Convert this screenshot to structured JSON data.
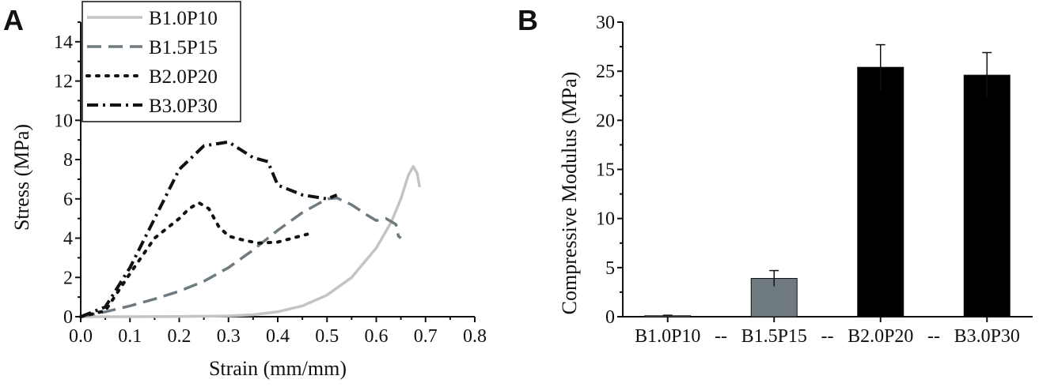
{
  "panels": {
    "a": {
      "letter": "A"
    },
    "b": {
      "letter": "B"
    }
  },
  "chart_data": [
    {
      "type": "line",
      "xlabel": "Strain (mm/mm)",
      "ylabel": "Stress (MPa)",
      "xlim": [
        0,
        0.8
      ],
      "ylim": [
        0,
        15
      ],
      "xticks": [
        "0.0",
        "0.1",
        "0.2",
        "0.3",
        "0.4",
        "0.5",
        "0.6",
        "0.7",
        "0.8"
      ],
      "yticks": [
        "0",
        "2",
        "4",
        "6",
        "8",
        "10",
        "12",
        "14"
      ],
      "grid": false,
      "legend_position": "top-left",
      "series": [
        {
          "name": "B1.0P10",
          "style": "solid",
          "color": "#c4c4c4",
          "points": [
            [
              0,
              0
            ],
            [
              0.1,
              0
            ],
            [
              0.2,
              0.01
            ],
            [
              0.3,
              0.04
            ],
            [
              0.35,
              0.1
            ],
            [
              0.4,
              0.25
            ],
            [
              0.45,
              0.55
            ],
            [
              0.5,
              1.1
            ],
            [
              0.55,
              2.0
            ],
            [
              0.6,
              3.5
            ],
            [
              0.63,
              4.8
            ],
            [
              0.65,
              6.0
            ],
            [
              0.665,
              7.2
            ],
            [
              0.675,
              7.65
            ],
            [
              0.683,
              7.3
            ],
            [
              0.688,
              6.6
            ]
          ]
        },
        {
          "name": "B1.5P15",
          "style": "dashed",
          "color": "#6e7a80",
          "points": [
            [
              0,
              0
            ],
            [
              0.05,
              0.25
            ],
            [
              0.1,
              0.55
            ],
            [
              0.15,
              0.9
            ],
            [
              0.2,
              1.3
            ],
            [
              0.25,
              1.8
            ],
            [
              0.3,
              2.5
            ],
            [
              0.35,
              3.4
            ],
            [
              0.4,
              4.4
            ],
            [
              0.45,
              5.3
            ],
            [
              0.5,
              6.0
            ],
            [
              0.52,
              6.05
            ],
            [
              0.55,
              5.7
            ],
            [
              0.58,
              5.2
            ],
            [
              0.6,
              4.9
            ],
            [
              0.62,
              5.0
            ],
            [
              0.64,
              4.7
            ],
            [
              0.645,
              4.1
            ],
            [
              0.65,
              4.0
            ]
          ]
        },
        {
          "name": "B2.0P20",
          "style": "dotted",
          "color": "#111111",
          "points": [
            [
              0,
              0
            ],
            [
              0.05,
              0.3
            ],
            [
              0.1,
              2.2
            ],
            [
              0.15,
              4.0
            ],
            [
              0.2,
              5.0
            ],
            [
              0.22,
              5.5
            ],
            [
              0.24,
              5.8
            ],
            [
              0.26,
              5.5
            ],
            [
              0.28,
              4.6
            ],
            [
              0.3,
              4.1
            ],
            [
              0.33,
              3.9
            ],
            [
              0.36,
              3.75
            ],
            [
              0.4,
              3.8
            ],
            [
              0.43,
              4.0
            ],
            [
              0.46,
              4.2
            ]
          ]
        },
        {
          "name": "B3.0P30",
          "style": "dash-dot",
          "color": "#111111",
          "points": [
            [
              0,
              0
            ],
            [
              0.05,
              0.5
            ],
            [
              0.1,
              2.5
            ],
            [
              0.15,
              5.0
            ],
            [
              0.2,
              7.5
            ],
            [
              0.25,
              8.7
            ],
            [
              0.3,
              8.9
            ],
            [
              0.35,
              8.1
            ],
            [
              0.38,
              7.9
            ],
            [
              0.4,
              6.7
            ],
            [
              0.45,
              6.2
            ],
            [
              0.5,
              6.0
            ],
            [
              0.52,
              6.2
            ]
          ]
        }
      ]
    },
    {
      "type": "bar",
      "xlabel": "",
      "ylabel": "Compressive Modulus (MPa)",
      "ylim": [
        0,
        30
      ],
      "yticks": [
        "0",
        "5",
        "10",
        "15",
        "20",
        "25",
        "30"
      ],
      "grid": false,
      "categories": [
        "B1.0P10",
        "B1.5P15",
        "B2.0P20",
        "B3.0P30"
      ],
      "values": [
        0.1,
        3.9,
        25.4,
        24.6
      ],
      "errors": [
        0.05,
        0.8,
        2.3,
        2.3
      ],
      "bar_colors": [
        "#6e7a80",
        "#6e7a80",
        "#000000",
        "#000000"
      ],
      "tick_separators": [
        "--",
        "--",
        "--"
      ]
    }
  ]
}
